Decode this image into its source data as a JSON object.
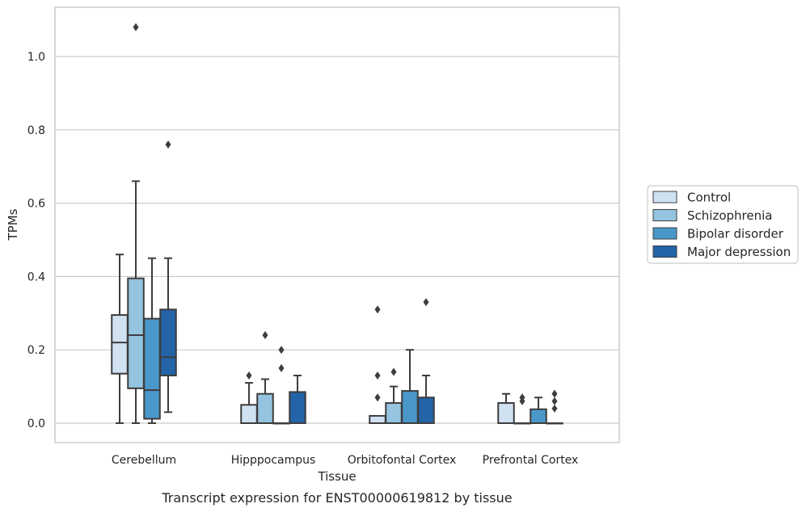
{
  "caption": "Transcript expression for ENST00000619812 by tissue",
  "chart_data": {
    "type": "box",
    "xlabel": "Tissue",
    "ylabel": "TPMs",
    "ylim": [
      -0.05,
      1.14
    ],
    "yticks": [
      0.0,
      0.2,
      0.4,
      0.6,
      0.8,
      1.0
    ],
    "ytick_labels": [
      "0.0",
      "0.2",
      "0.4",
      "0.6",
      "0.8",
      "1.0"
    ],
    "grid": "horizontal",
    "legend_position": "right",
    "categories": [
      "Cerebellum",
      "Hipppocampus",
      "Orbitofontal Cortex",
      "Prefrontal Cortex"
    ],
    "series": [
      {
        "name": "Control",
        "color": "#d0e1f2",
        "boxes": [
          {
            "whislo": 0.0,
            "q1": 0.135,
            "med": 0.22,
            "q3": 0.295,
            "whishi": 0.46,
            "fliers": []
          },
          {
            "whislo": 0.0,
            "q1": 0.0,
            "med": 0.0,
            "q3": 0.05,
            "whishi": 0.11,
            "fliers": [
              0.13
            ]
          },
          {
            "whislo": 0.0,
            "q1": 0.0,
            "med": 0.0,
            "q3": 0.02,
            "whishi": 0.02,
            "fliers": [
              0.07,
              0.13,
              0.31
            ]
          },
          {
            "whislo": 0.0,
            "q1": 0.0,
            "med": 0.0,
            "q3": 0.055,
            "whishi": 0.08,
            "fliers": []
          }
        ]
      },
      {
        "name": "Schizophrenia",
        "color": "#94c4df",
        "boxes": [
          {
            "whislo": 0.0,
            "q1": 0.095,
            "med": 0.24,
            "q3": 0.395,
            "whishi": 0.66,
            "fliers": [
              1.08
            ]
          },
          {
            "whislo": 0.0,
            "q1": 0.0,
            "med": 0.0,
            "q3": 0.08,
            "whishi": 0.12,
            "fliers": [
              0.24
            ]
          },
          {
            "whislo": 0.0,
            "q1": 0.0,
            "med": 0.0,
            "q3": 0.055,
            "whishi": 0.1,
            "fliers": [
              0.14
            ]
          },
          {
            "whislo": 0.0,
            "q1": 0.0,
            "med": 0.0,
            "q3": 0.0,
            "whishi": 0.0,
            "fliers": [
              0.06,
              0.07
            ]
          }
        ]
      },
      {
        "name": "Bipolar disorder",
        "color": "#4a98c9",
        "boxes": [
          {
            "whislo": 0.0,
            "q1": 0.012,
            "med": 0.09,
            "q3": 0.285,
            "whishi": 0.45,
            "fliers": []
          },
          {
            "whislo": 0.0,
            "q1": 0.0,
            "med": 0.0,
            "q3": 0.0,
            "whishi": 0.0,
            "fliers": [
              0.15,
              0.2
            ]
          },
          {
            "whislo": 0.0,
            "q1": 0.0,
            "med": 0.0,
            "q3": 0.088,
            "whishi": 0.2,
            "fliers": []
          },
          {
            "whislo": 0.0,
            "q1": 0.0,
            "med": 0.0,
            "q3": 0.038,
            "whishi": 0.07,
            "fliers": []
          }
        ]
      },
      {
        "name": "Major depression",
        "color": "#2363a8",
        "boxes": [
          {
            "whislo": 0.03,
            "q1": 0.13,
            "med": 0.18,
            "q3": 0.31,
            "whishi": 0.45,
            "fliers": [
              0.76
            ]
          },
          {
            "whislo": 0.0,
            "q1": 0.0,
            "med": 0.0,
            "q3": 0.085,
            "whishi": 0.13,
            "fliers": []
          },
          {
            "whislo": 0.0,
            "q1": 0.0,
            "med": 0.0,
            "q3": 0.07,
            "whishi": 0.13,
            "fliers": [
              0.33
            ]
          },
          {
            "whislo": 0.0,
            "q1": 0.0,
            "med": 0.0,
            "q3": 0.0,
            "whishi": 0.0,
            "fliers": [
              0.04,
              0.06,
              0.08
            ]
          }
        ]
      }
    ]
  }
}
